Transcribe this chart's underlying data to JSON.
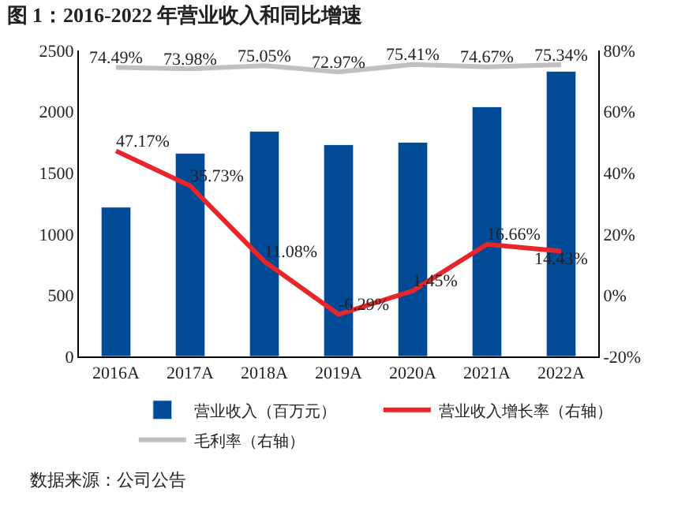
{
  "chart_data": {
    "type": "bar",
    "title": "图 1：2016-2022 年营业收入和同比增速",
    "categories": [
      "2016A",
      "2017A",
      "2018A",
      "2019A",
      "2020A",
      "2021A",
      "2022A"
    ],
    "series": [
      {
        "name": "营业收入（百万元）",
        "color": "#004a96",
        "values": [
          1220,
          1660,
          1840,
          1730,
          1750,
          2040,
          2330
        ]
      },
      {
        "name": "营业收入增长率（右轴）",
        "type": "line",
        "axis": "y2",
        "color": "#e8262a",
        "values": [
          47.17,
          35.73,
          11.08,
          -6.29,
          1.45,
          16.66,
          14.43
        ],
        "value_labels": [
          "47.17%",
          "35.73%",
          "11.08%",
          "-6.29%",
          "1.45%",
          "16.66%",
          "14.43%"
        ]
      },
      {
        "name": "毛利率（右轴）",
        "type": "line",
        "axis": "y2",
        "color": "#c0c0c0",
        "values": [
          74.49,
          73.98,
          75.05,
          72.97,
          75.41,
          74.67,
          75.34
        ],
        "value_labels": [
          "74.49%",
          "73.98%",
          "75.05%",
          "72.97%",
          "75.41%",
          "74.67%",
          "75.34%"
        ]
      }
    ],
    "ylim": [
      0,
      2500
    ],
    "yticks": [
      0,
      500,
      1000,
      1500,
      2000,
      2500
    ],
    "y2lim": [
      -20,
      80
    ],
    "y2ticks": [
      {
        "value": -20,
        "label": "-20%"
      },
      {
        "value": 0,
        "label": "0%"
      },
      {
        "value": 20,
        "label": "20%"
      },
      {
        "value": 40,
        "label": "40%"
      },
      {
        "value": 60,
        "label": "60%"
      },
      {
        "value": 80,
        "label": "80%"
      }
    ],
    "grid": false,
    "legend": "bottom",
    "marker": "none",
    "annotations": [
      "数据来源：公司公告"
    ]
  }
}
